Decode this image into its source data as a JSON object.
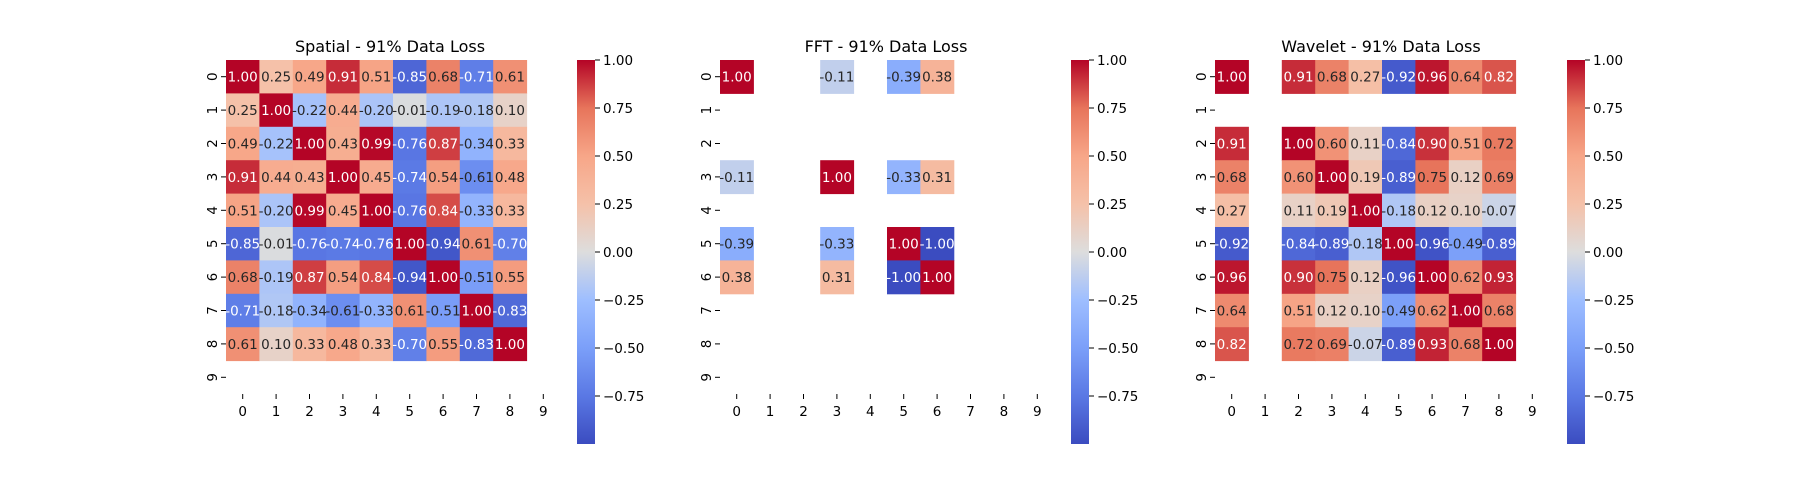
{
  "chart_data": [
    {
      "type": "heatmap",
      "title": "Spatial - 91% Data Loss",
      "x_tick_labels": [
        "0",
        "1",
        "2",
        "3",
        "4",
        "5",
        "6",
        "7",
        "8",
        "9"
      ],
      "y_tick_labels": [
        "0",
        "1",
        "2",
        "3",
        "4",
        "5",
        "6",
        "7",
        "8",
        "9"
      ],
      "values": [
        [
          1.0,
          0.25,
          0.49,
          0.91,
          0.51,
          -0.85,
          0.68,
          -0.71,
          0.61,
          null
        ],
        [
          0.25,
          1.0,
          -0.22,
          0.44,
          -0.2,
          -0.01,
          -0.19,
          -0.18,
          0.1,
          null
        ],
        [
          0.49,
          -0.22,
          1.0,
          0.43,
          0.99,
          -0.76,
          0.87,
          -0.34,
          0.33,
          null
        ],
        [
          0.91,
          0.44,
          0.43,
          1.0,
          0.45,
          -0.74,
          0.54,
          -0.61,
          0.48,
          null
        ],
        [
          0.51,
          -0.2,
          0.99,
          0.45,
          1.0,
          -0.76,
          0.84,
          -0.33,
          0.33,
          null
        ],
        [
          -0.85,
          -0.01,
          -0.76,
          -0.74,
          -0.76,
          1.0,
          -0.94,
          0.61,
          -0.7,
          null
        ],
        [
          0.68,
          -0.19,
          0.87,
          0.54,
          0.84,
          -0.94,
          1.0,
          -0.51,
          0.55,
          null
        ],
        [
          -0.71,
          -0.18,
          -0.34,
          -0.61,
          -0.33,
          0.61,
          -0.51,
          1.0,
          -0.83,
          null
        ],
        [
          0.61,
          0.1,
          0.33,
          0.48,
          0.33,
          -0.7,
          0.55,
          -0.83,
          1.0,
          null
        ],
        [
          null,
          null,
          null,
          null,
          null,
          null,
          null,
          null,
          null,
          null
        ]
      ],
      "colorbar": {
        "vmin": -1.0,
        "vmax": 1.0,
        "tick_values": [
          1.0,
          0.75,
          0.5,
          0.25,
          0.0,
          -0.25,
          -0.5,
          -0.75
        ],
        "tick_labels": [
          "1.00",
          "0.75",
          "0.50",
          "0.25",
          "0.00",
          "−0.25",
          "−0.50",
          "−0.75"
        ]
      }
    },
    {
      "type": "heatmap",
      "title": "FFT - 91% Data Loss",
      "x_tick_labels": [
        "0",
        "1",
        "2",
        "3",
        "4",
        "5",
        "6",
        "7",
        "8",
        "9"
      ],
      "y_tick_labels": [
        "0",
        "1",
        "2",
        "3",
        "4",
        "5",
        "6",
        "7",
        "8",
        "9"
      ],
      "values": [
        [
          1.0,
          null,
          null,
          -0.11,
          null,
          -0.39,
          0.38,
          null,
          null,
          null
        ],
        [
          null,
          null,
          null,
          null,
          null,
          null,
          null,
          null,
          null,
          null
        ],
        [
          null,
          null,
          null,
          null,
          null,
          null,
          null,
          null,
          null,
          null
        ],
        [
          -0.11,
          null,
          null,
          1.0,
          null,
          -0.33,
          0.31,
          null,
          null,
          null
        ],
        [
          null,
          null,
          null,
          null,
          null,
          null,
          null,
          null,
          null,
          null
        ],
        [
          -0.39,
          null,
          null,
          -0.33,
          null,
          1.0,
          -1.0,
          null,
          null,
          null
        ],
        [
          0.38,
          null,
          null,
          0.31,
          null,
          -1.0,
          1.0,
          null,
          null,
          null
        ],
        [
          null,
          null,
          null,
          null,
          null,
          null,
          null,
          null,
          null,
          null
        ],
        [
          null,
          null,
          null,
          null,
          null,
          null,
          null,
          null,
          null,
          null
        ],
        [
          null,
          null,
          null,
          null,
          null,
          null,
          null,
          null,
          null,
          null
        ]
      ],
      "colorbar": {
        "vmin": -1.0,
        "vmax": 1.0,
        "tick_values": [
          1.0,
          0.75,
          0.5,
          0.25,
          0.0,
          -0.25,
          -0.5,
          -0.75
        ],
        "tick_labels": [
          "1.00",
          "0.75",
          "0.50",
          "0.25",
          "0.00",
          "−0.25",
          "−0.50",
          "−0.75"
        ]
      }
    },
    {
      "type": "heatmap",
      "title": "Wavelet - 91% Data Loss",
      "x_tick_labels": [
        "0",
        "1",
        "2",
        "3",
        "4",
        "5",
        "6",
        "7",
        "8",
        "9"
      ],
      "y_tick_labels": [
        "0",
        "1",
        "2",
        "3",
        "4",
        "5",
        "6",
        "7",
        "8",
        "9"
      ],
      "values": [
        [
          1.0,
          null,
          0.91,
          0.68,
          0.27,
          -0.92,
          0.96,
          0.64,
          0.82,
          null
        ],
        [
          null,
          null,
          null,
          null,
          null,
          null,
          null,
          null,
          null,
          null
        ],
        [
          0.91,
          null,
          1.0,
          0.6,
          0.11,
          -0.84,
          0.9,
          0.51,
          0.72,
          null
        ],
        [
          0.68,
          null,
          0.6,
          1.0,
          0.19,
          -0.89,
          0.75,
          0.12,
          0.69,
          null
        ],
        [
          0.27,
          null,
          0.11,
          0.19,
          1.0,
          -0.18,
          0.12,
          0.1,
          -0.07,
          null
        ],
        [
          -0.92,
          null,
          -0.84,
          -0.89,
          -0.18,
          1.0,
          -0.96,
          -0.49,
          -0.89,
          null
        ],
        [
          0.96,
          null,
          0.9,
          0.75,
          0.12,
          -0.96,
          1.0,
          0.62,
          0.93,
          null
        ],
        [
          0.64,
          null,
          0.51,
          0.12,
          0.1,
          -0.49,
          0.62,
          1.0,
          0.68,
          null
        ],
        [
          0.82,
          null,
          0.72,
          0.69,
          -0.07,
          -0.89,
          0.93,
          0.68,
          1.0,
          null
        ],
        [
          null,
          null,
          null,
          null,
          null,
          null,
          null,
          null,
          null,
          null
        ]
      ],
      "colorbar": {
        "vmin": -1.0,
        "vmax": 1.0,
        "tick_values": [
          1.0,
          0.75,
          0.5,
          0.25,
          0.0,
          -0.25,
          -0.5,
          -0.75
        ],
        "tick_labels": [
          "1.00",
          "0.75",
          "0.50",
          "0.25",
          "0.00",
          "−0.25",
          "−0.50",
          "−0.75"
        ]
      }
    }
  ]
}
